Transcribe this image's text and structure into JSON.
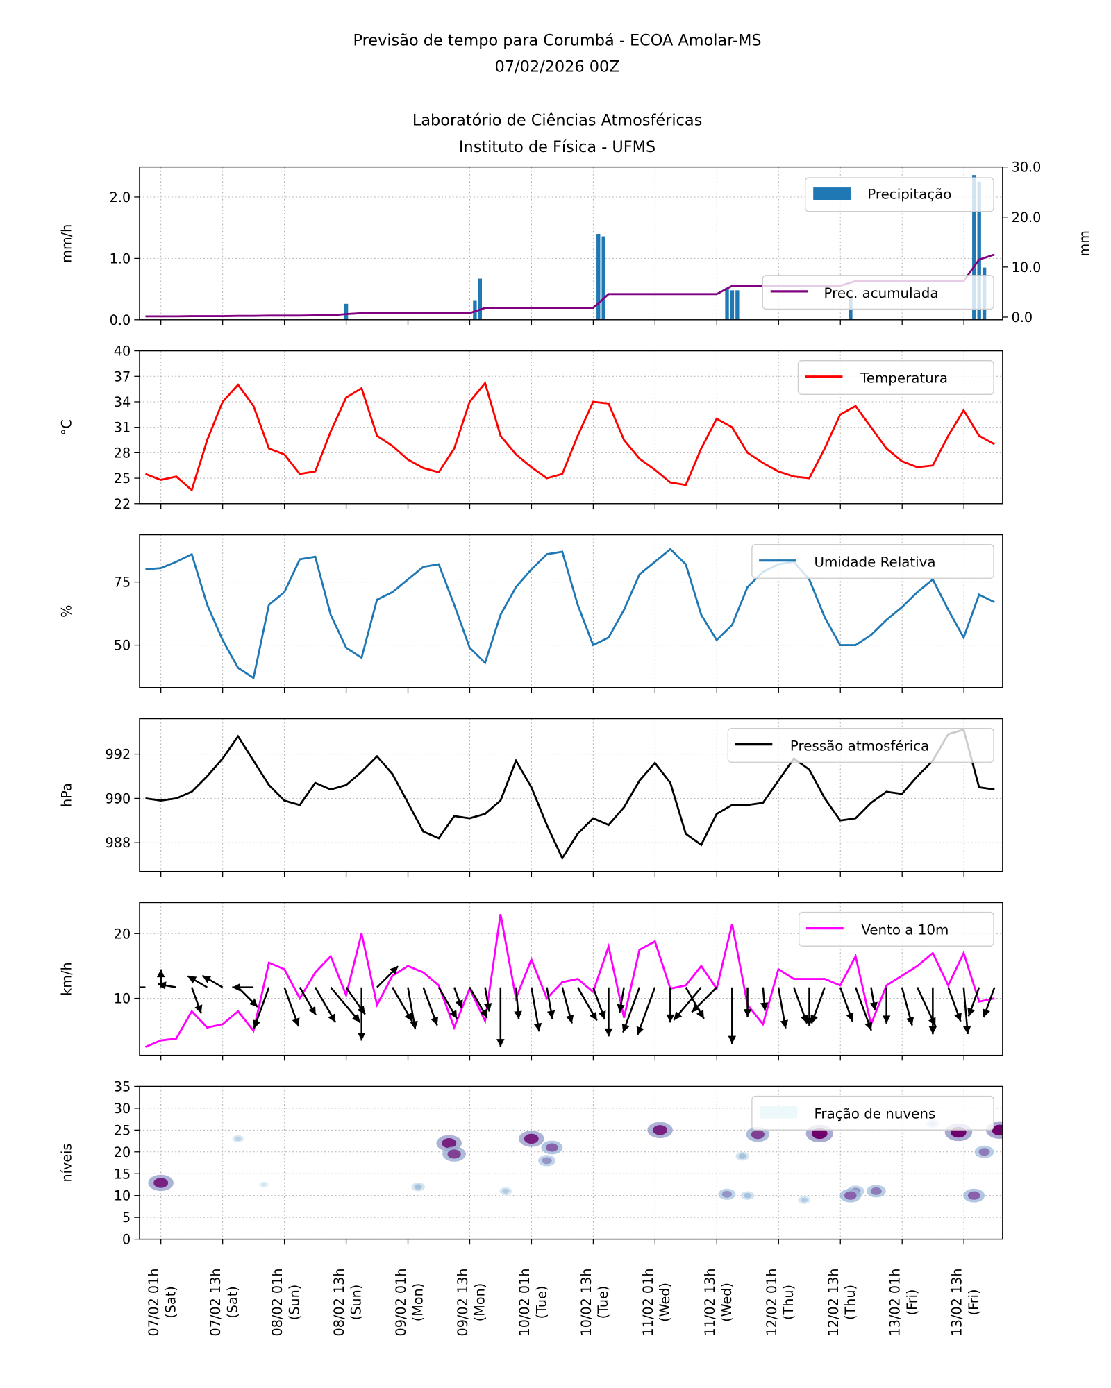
{
  "header": {
    "title_line1": "Previsão de tempo para Corumbá - ECOA Amolar-MS",
    "title_line2": "07/02/2026 00Z",
    "title_line3": "Laboratório de Ciências Atmosféricas",
    "title_line4": "Instituto de Física - UFMS"
  },
  "chart_data": [
    {
      "type": "bar",
      "ylabel": "mm/h",
      "y_ticks": [
        "0.0",
        "1.0",
        "2.0"
      ],
      "ylim": [
        0,
        2.49
      ],
      "legend": "Precipitação",
      "legend_placement": "upper-right",
      "color": "#1f77b4",
      "grid": true,
      "bars": [
        {
          "time": "08/02 13h",
          "value": 0.26
        },
        {
          "time": "09/02 14h",
          "value": 0.32
        },
        {
          "time": "09/02 15h",
          "value": 0.67
        },
        {
          "time": "10/02 14h",
          "value": 1.4
        },
        {
          "time": "10/02 15h",
          "value": 1.36
        },
        {
          "time": "11/02 15h",
          "value": 0.52
        },
        {
          "time": "11/02 16h",
          "value": 0.48
        },
        {
          "time": "11/02 17h",
          "value": 0.48
        },
        {
          "time": "12/02 15h",
          "value": 0.35
        },
        {
          "time": "13/02 15h",
          "value": 2.36
        },
        {
          "time": "13/02 16h",
          "value": 2.25
        },
        {
          "time": "13/02 17h",
          "value": 0.85
        }
      ],
      "secondary": {
        "type": "line",
        "ylabel": "mm",
        "y_ticks": [
          "0.0",
          "10.0",
          "20.0",
          "30.0"
        ],
        "ylim": [
          0,
          30
        ],
        "legend": "Prec. acumulada",
        "legend_placement": "lower-right",
        "color": "#800080",
        "values": [
          0.15,
          0.15,
          0.15,
          0.2,
          0.2,
          0.2,
          0.25,
          0.25,
          0.3,
          0.3,
          0.3,
          0.35,
          0.35,
          0.6,
          0.8,
          0.8,
          0.8,
          0.8,
          0.8,
          0.8,
          0.8,
          0.8,
          1.85,
          1.85,
          1.85,
          1.85,
          1.85,
          1.85,
          1.85,
          1.85,
          4.6,
          4.6,
          4.6,
          4.6,
          4.6,
          4.6,
          4.6,
          4.6,
          6.25,
          6.25,
          6.25,
          6.25,
          6.25,
          6.25,
          6.25,
          6.25,
          7.2,
          7.2,
          7.2,
          7.2,
          7.2,
          7.2,
          7.2,
          7.2,
          11.5,
          12.5
        ]
      }
    },
    {
      "type": "line",
      "ylabel": "$^\\circ$C",
      "ylabel_display": "°C",
      "y_ticks": [
        "22",
        "25",
        "28",
        "31",
        "34",
        "37",
        "40"
      ],
      "ylim": [
        22,
        40
      ],
      "legend": "Temperatura",
      "legend_placement": "upper-right",
      "color": "#ff0000",
      "grid": true,
      "values": [
        25.5,
        24.8,
        25.2,
        23.6,
        29.5,
        34.0,
        36.0,
        33.5,
        28.5,
        27.8,
        25.5,
        25.8,
        30.5,
        34.5,
        35.6,
        30.0,
        28.8,
        27.2,
        26.2,
        25.7,
        28.5,
        34.0,
        36.2,
        30.0,
        27.8,
        26.3,
        25.0,
        25.5,
        30.0,
        34.0,
        33.8,
        29.5,
        27.3,
        26.0,
        24.5,
        24.2,
        28.5,
        32.0,
        31.0,
        28.0,
        26.8,
        25.8,
        25.2,
        25.0,
        28.5,
        32.5,
        33.5,
        31.0,
        28.5,
        27.0,
        26.3,
        26.5,
        30.0,
        33.0,
        30.0,
        29.0
      ]
    },
    {
      "type": "line",
      "ylabel": "%",
      "y_ticks": [
        "50",
        "75"
      ],
      "ylim": [
        33.2,
        93.7
      ],
      "legend": "Umidade Relativa",
      "legend_placement": "upper-right",
      "color": "#1f77b4",
      "grid": true,
      "values": [
        80,
        80.5,
        83,
        86,
        66,
        52,
        41,
        37,
        66,
        71,
        84,
        85,
        62,
        49,
        45,
        68,
        71,
        76,
        81,
        82,
        66,
        49,
        43,
        62,
        73,
        80,
        86,
        87,
        66,
        50,
        53,
        64,
        78,
        83,
        88,
        82,
        62,
        52,
        58,
        73,
        79,
        82,
        83,
        76,
        61,
        50,
        50,
        54,
        60,
        65,
        71,
        76,
        64,
        53,
        70,
        67
      ]
    },
    {
      "type": "line",
      "ylabel": "hPa",
      "y_ticks": [
        "988",
        "990",
        "992"
      ],
      "ylim": [
        986.7,
        993.6
      ],
      "legend": "Pressão atmosférica",
      "legend_placement": "upper-right",
      "color": "#000000",
      "grid": true,
      "values": [
        990.0,
        989.9,
        990.0,
        990.3,
        991.0,
        991.8,
        992.8,
        991.7,
        990.6,
        989.9,
        989.7,
        990.7,
        990.4,
        990.6,
        991.2,
        991.9,
        991.1,
        989.8,
        988.5,
        988.2,
        989.2,
        989.1,
        989.3,
        989.9,
        991.7,
        990.5,
        988.8,
        987.3,
        988.4,
        989.1,
        988.8,
        989.6,
        990.8,
        991.6,
        990.7,
        988.4,
        987.9,
        989.3,
        989.7,
        989.7,
        989.8,
        990.8,
        991.8,
        991.3,
        990.0,
        989.0,
        989.1,
        989.8,
        990.3,
        990.2,
        991.0,
        991.7,
        992.9,
        993.1,
        990.5,
        990.4
      ]
    },
    {
      "type": "line",
      "ylabel": "km/h",
      "y_ticks": [
        "10",
        "20"
      ],
      "ylim": [
        1.2,
        24.8
      ],
      "legend": "Vento a 10m",
      "legend_placement": "upper-right",
      "color": "#ff00ff",
      "grid": true,
      "values": [
        2.5,
        3.5,
        3.8,
        8.0,
        5.5,
        6.0,
        8.0,
        5.0,
        15.5,
        14.5,
        10.0,
        14.0,
        16.5,
        10.5,
        20.0,
        9.0,
        13.5,
        15.0,
        14.0,
        12.0,
        5.5,
        11.5,
        6.5,
        23.0,
        10.0,
        16.0,
        10.0,
        12.5,
        13.0,
        11.0,
        18.0,
        7.0,
        17.5,
        18.8,
        11.5,
        12.0,
        15.0,
        11.5,
        21.5,
        9.0,
        6.0,
        14.5,
        13.0,
        13.0,
        13.0,
        12.0,
        16.5,
        6.0,
        12.0,
        13.5,
        15.0,
        17.0,
        12.0,
        17.0,
        9.5,
        10.0
      ],
      "arrow_direction_deg": [
        270,
        0,
        280,
        160,
        300,
        300,
        135,
        270,
        200,
        160,
        150,
        150,
        140,
        145,
        180,
        45,
        150,
        170,
        160,
        150,
        160,
        150,
        170,
        180,
        175,
        170,
        170,
        165,
        150,
        160,
        180,
        190,
        200,
        200,
        180,
        150,
        220,
        225,
        180,
        180,
        175,
        170,
        160,
        180,
        200,
        160,
        160,
        170,
        180,
        165,
        155,
        180,
        160,
        175,
        200,
        200
      ]
    },
    {
      "type": "heatmap",
      "ylabel": "níveis",
      "y_ticks": [
        "0",
        "5",
        "10",
        "15",
        "20",
        "25",
        "30",
        "35"
      ],
      "ylim": [
        0,
        35
      ],
      "legend": "Fração de nuvens",
      "legend_placement": "upper-right",
      "colormap": [
        "#edf8fb",
        "#9ebcda",
        "#8c6bb1",
        "#6e016b"
      ],
      "grid": true,
      "patches": [
        {
          "time": "07/02 01h",
          "level": 12.9,
          "fraction": 0.9
        },
        {
          "time": "07/02 16h",
          "level": 23,
          "fraction": 0.2
        },
        {
          "time": "07/02 21h",
          "level": 12.5,
          "fraction": 0.1
        },
        {
          "time": "09/02 03h",
          "level": 12,
          "fraction": 0.3
        },
        {
          "time": "09/02 09h",
          "level": 22,
          "fraction": 0.9
        },
        {
          "time": "09/02 10h",
          "level": 19.5,
          "fraction": 0.8
        },
        {
          "time": "09/02 20h",
          "level": 11,
          "fraction": 0.25
        },
        {
          "time": "10/02 01h",
          "level": 23,
          "fraction": 0.9
        },
        {
          "time": "10/02 05h",
          "level": 21,
          "fraction": 0.7
        },
        {
          "time": "10/02 04h",
          "level": 18,
          "fraction": 0.5
        },
        {
          "time": "11/02 02h",
          "level": 25,
          "fraction": 0.9
        },
        {
          "time": "11/02 18h",
          "level": 19,
          "fraction": 0.3
        },
        {
          "time": "11/02 15h",
          "level": 10.3,
          "fraction": 0.5
        },
        {
          "time": "11/02 19h",
          "level": 10,
          "fraction": 0.3
        },
        {
          "time": "11/02 21h",
          "level": 24,
          "fraction": 0.8
        },
        {
          "time": "12/02 06h",
          "level": 9,
          "fraction": 0.25
        },
        {
          "time": "12/02 09h",
          "level": 24.2,
          "fraction": 1.0
        },
        {
          "time": "12/02 16h",
          "level": 11,
          "fraction": 0.5
        },
        {
          "time": "12/02 15h",
          "level": 10,
          "fraction": 0.7
        },
        {
          "time": "12/02 20h",
          "level": 11,
          "fraction": 0.6
        },
        {
          "time": "13/02 07h",
          "level": 26.5,
          "fraction": 0.3
        },
        {
          "time": "13/02 12h",
          "level": 24.5,
          "fraction": 1.0
        },
        {
          "time": "13/02 17h",
          "level": 20,
          "fraction": 0.6
        },
        {
          "time": "13/02 20h",
          "level": 25,
          "fraction": 1.0
        },
        {
          "time": "13/02 15h",
          "level": 10,
          "fraction": 0.7
        }
      ]
    }
  ],
  "times": [
    "06/02 22h",
    "07/02 01h",
    "07/02 04h",
    "07/02 07h",
    "07/02 10h",
    "07/02 13h",
    "07/02 16h",
    "07/02 19h",
    "07/02 22h",
    "08/02 01h",
    "08/02 04h",
    "08/02 07h",
    "08/02 10h",
    "08/02 13h",
    "08/02 16h",
    "08/02 19h",
    "08/02 22h",
    "09/02 01h",
    "09/02 04h",
    "09/02 07h",
    "09/02 10h",
    "09/02 13h",
    "09/02 16h",
    "09/02 19h",
    "09/02 22h",
    "10/02 01h",
    "10/02 04h",
    "10/02 07h",
    "10/02 10h",
    "10/02 13h",
    "10/02 16h",
    "10/02 19h",
    "10/02 22h",
    "11/02 01h",
    "11/02 04h",
    "11/02 07h",
    "11/02 10h",
    "11/02 13h",
    "11/02 16h",
    "11/02 19h",
    "11/02 22h",
    "12/02 01h",
    "12/02 04h",
    "12/02 07h",
    "12/02 10h",
    "12/02 13h",
    "12/02 16h",
    "12/02 19h",
    "12/02 22h",
    "13/02 01h",
    "13/02 04h",
    "13/02 07h",
    "13/02 10h",
    "13/02 13h",
    "13/02 16h",
    "13/02 19h"
  ],
  "x_ticks": [
    {
      "label": "07/02 01h",
      "day": "(Sat)"
    },
    {
      "label": "07/02 13h",
      "day": "(Sat)"
    },
    {
      "label": "08/02 01h",
      "day": "(Sun)"
    },
    {
      "label": "08/02 13h",
      "day": "(Sun)"
    },
    {
      "label": "09/02 01h",
      "day": "(Mon)"
    },
    {
      "label": "09/02 13h",
      "day": "(Mon)"
    },
    {
      "label": "10/02 01h",
      "day": "(Tue)"
    },
    {
      "label": "10/02 13h",
      "day": "(Tue)"
    },
    {
      "label": "11/02 01h",
      "day": "(Wed)"
    },
    {
      "label": "11/02 13h",
      "day": "(Wed)"
    },
    {
      "label": "12/02 01h",
      "day": "(Thu)"
    },
    {
      "label": "12/02 13h",
      "day": "(Thu)"
    },
    {
      "label": "13/02 01h",
      "day": "(Fri)"
    },
    {
      "label": "13/02 13h",
      "day": "(Fri)"
    }
  ]
}
